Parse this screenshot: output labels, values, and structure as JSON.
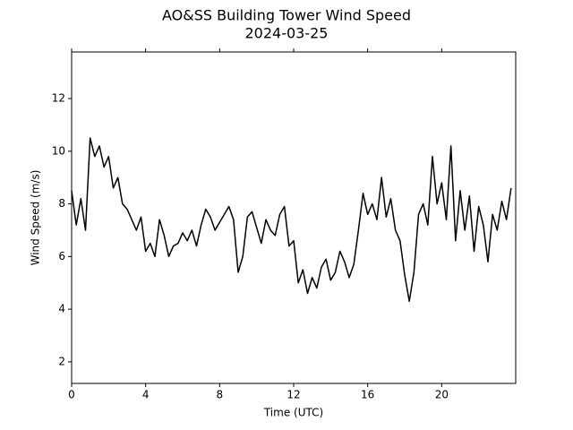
{
  "chart_data": {
    "type": "line",
    "title": "AO&SS Building Tower Wind Speed",
    "subtitle": "2024-03-25",
    "x_label": "Time (UTC)",
    "y_label": "Wind Speed (m/s)",
    "xlim": [
      0,
      24
    ],
    "ylim": [
      1.18,
      13.77
    ],
    "xticks": [
      0,
      4,
      8,
      12,
      16,
      20
    ],
    "yticks": [
      2,
      4,
      6,
      8,
      10,
      12
    ],
    "x": [
      0,
      0.25,
      0.5,
      0.75,
      1,
      1.25,
      1.5,
      1.75,
      2,
      2.25,
      2.5,
      2.75,
      3,
      3.25,
      3.5,
      3.75,
      4,
      4.25,
      4.5,
      4.75,
      5,
      5.25,
      5.5,
      5.75,
      6,
      6.25,
      6.5,
      6.75,
      7,
      7.25,
      7.5,
      7.75,
      8,
      8.25,
      8.5,
      8.75,
      9,
      9.25,
      9.5,
      9.75,
      10,
      10.25,
      10.5,
      10.75,
      11,
      11.25,
      11.5,
      11.75,
      12,
      12.25,
      12.5,
      12.75,
      13,
      13.25,
      13.5,
      13.75,
      14,
      14.25,
      14.5,
      14.75,
      15,
      15.25,
      15.5,
      15.75,
      16,
      16.25,
      16.5,
      16.75,
      17,
      17.25,
      17.5,
      17.75,
      18,
      18.25,
      18.5,
      18.75,
      19,
      19.25,
      19.5,
      19.75,
      20,
      20.25,
      20.5,
      20.75,
      21,
      21.25,
      21.5,
      21.75,
      22,
      22.25,
      22.5,
      22.75,
      23,
      23.25,
      23.5,
      23.75
    ],
    "series": [
      {
        "color": "#000000",
        "values": [
          8.5,
          7.2,
          8.2,
          7.0,
          10.5,
          9.8,
          10.2,
          9.4,
          9.8,
          8.6,
          9.0,
          8.0,
          7.8,
          7.4,
          7.0,
          7.5,
          6.2,
          6.5,
          6.0,
          7.4,
          6.8,
          6.0,
          6.4,
          6.5,
          6.9,
          6.6,
          7.0,
          6.4,
          7.2,
          7.8,
          7.5,
          7.0,
          7.3,
          7.6,
          7.9,
          7.4,
          5.4,
          6.0,
          7.5,
          7.7,
          7.1,
          6.5,
          7.4,
          7.0,
          6.8,
          7.6,
          7.9,
          6.4,
          6.6,
          5.0,
          5.5,
          4.6,
          5.2,
          4.8,
          5.6,
          5.9,
          5.1,
          5.4,
          6.2,
          5.8,
          5.2,
          5.7,
          7.0,
          8.4,
          7.6,
          8.0,
          7.4,
          9.0,
          7.5,
          8.2,
          7.0,
          6.6,
          5.3,
          4.3,
          5.4,
          7.6,
          8.0,
          7.2,
          9.8,
          8.0,
          8.8,
          7.4,
          10.2,
          6.6,
          8.5,
          7.0,
          8.3,
          6.2,
          7.9,
          7.2,
          5.8,
          7.6,
          7.0,
          8.1,
          7.4,
          8.6
        ]
      }
    ]
  }
}
